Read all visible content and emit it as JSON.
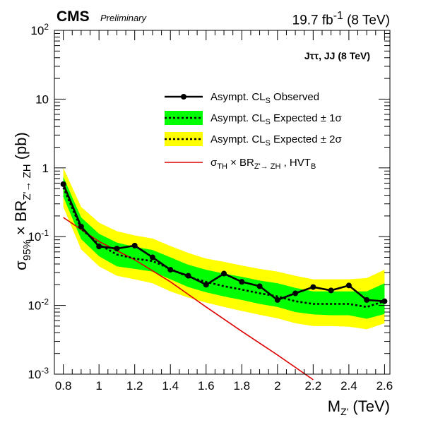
{
  "header": {
    "experiment": "CMS",
    "status": "Preliminary",
    "luminosity_html": "19.7 fb<sup>-1</sup> (8 TeV)"
  },
  "chart_data": {
    "type": "line",
    "channel_label_html": "J&tau;&tau;, JJ (8 TeV)",
    "xlabel_html": "M<tspan dy='5' font-size='14'>Z'</tspan><tspan dy='-5'> (TeV)</tspan>",
    "ylabel_html": "&sigma;<tspan dy='6' font-size='15'>95%</tspan><tspan dy='-6'> &times; BR</tspan><tspan dy='6' font-size='15'>Z'&rarr; ZH</tspan><tspan dy='-6'> (pb)</tspan>",
    "xlim": [
      0.75,
      2.63
    ],
    "ylim": [
      0.001,
      100
    ],
    "yscale": "log",
    "x_ticks": [
      0.8,
      1,
      1.2,
      1.4,
      1.6,
      1.8,
      2,
      2.2,
      2.4,
      2.6
    ],
    "x_tick_labels": [
      "0.8",
      "1",
      "1.2",
      "1.4",
      "1.6",
      "1.8",
      "2",
      "2.2",
      "2.4",
      "2.6"
    ],
    "y_ticks": [
      0.001,
      0.01,
      0.1,
      1,
      10,
      100
    ],
    "y_tick_labels_html": [
      "10<tspan dy='-7' font-size='12'>-3</tspan>",
      "10<tspan dy='-7' font-size='12'>-2</tspan>",
      "10<tspan dy='-7' font-size='12'>-1</tspan>",
      "1",
      "10",
      "10<tspan dy='-7' font-size='12'>2</tspan>"
    ],
    "legend": {
      "position": "top-right",
      "entries_html": [
        "Asympt. CL<tspan dy='4' font-size='11'>S</tspan><tspan dy='-4'> Observed</tspan>",
        "Asympt. CL<tspan dy='4' font-size='11'>S</tspan><tspan dy='-4'> Expected &plusmn; 1&sigma;</tspan>",
        "Asympt. CL<tspan dy='4' font-size='11'>S</tspan><tspan dy='-4'> Expected &plusmn; 2&sigma;</tspan>",
        "&sigma;<tspan dy='4' font-size='11'>TH</tspan><tspan dy='-4'> &times; BR</tspan><tspan dy='4' font-size='11'>Z'&rarr; ZH</tspan><tspan dy='-4'> , HVT</tspan><tspan dy='4' font-size='11'>B</tspan>"
      ]
    },
    "colors": {
      "band_2sigma": "#ffff00",
      "band_1sigma": "#00ff00",
      "expected": "#000000",
      "observed": "#000000",
      "theory": "#dd0000"
    },
    "mass_points": [
      0.8,
      0.9,
      1.0,
      1.1,
      1.2,
      1.3,
      1.4,
      1.5,
      1.6,
      1.7,
      1.8,
      1.9,
      2.0,
      2.1,
      2.2,
      2.3,
      2.4,
      2.5,
      2.6
    ],
    "observed": [
      0.58,
      0.14,
      0.072,
      0.067,
      0.074,
      0.05,
      0.033,
      0.027,
      0.02,
      0.029,
      0.022,
      0.019,
      0.012,
      0.015,
      0.0185,
      0.0165,
      0.0195,
      0.012,
      0.0115
    ],
    "expected": [
      0.52,
      0.13,
      0.077,
      0.055,
      0.048,
      0.044,
      0.034,
      0.026,
      0.022,
      0.019,
      0.017,
      0.015,
      0.0135,
      0.0115,
      0.0105,
      0.0105,
      0.0105,
      0.0095,
      0.0115
    ],
    "band_1sigma_low": [
      0.38,
      0.092,
      0.052,
      0.037,
      0.034,
      0.031,
      0.024,
      0.0185,
      0.0155,
      0.0135,
      0.012,
      0.0105,
      0.0095,
      0.008,
      0.0074,
      0.0072,
      0.0072,
      0.0064,
      0.0075
    ],
    "band_1sigma_high": [
      0.74,
      0.19,
      0.11,
      0.082,
      0.071,
      0.064,
      0.05,
      0.039,
      0.033,
      0.029,
      0.026,
      0.023,
      0.021,
      0.018,
      0.016,
      0.016,
      0.016,
      0.016,
      0.021
    ],
    "band_2sigma_low": [
      0.27,
      0.065,
      0.037,
      0.027,
      0.024,
      0.021,
      0.016,
      0.013,
      0.011,
      0.0095,
      0.0083,
      0.0073,
      0.0065,
      0.0055,
      0.005,
      0.005,
      0.0049,
      0.0045,
      0.0055
    ],
    "band_2sigma_high": [
      1.0,
      0.27,
      0.16,
      0.12,
      0.104,
      0.094,
      0.073,
      0.058,
      0.048,
      0.043,
      0.038,
      0.034,
      0.031,
      0.027,
      0.024,
      0.024,
      0.024,
      0.025,
      0.033
    ],
    "theory": {
      "x": [
        0.8,
        1.0,
        1.2,
        1.4,
        1.6,
        1.8,
        2.0,
        2.2
      ],
      "y": [
        0.19,
        0.085,
        0.046,
        0.022,
        0.0095,
        0.0042,
        0.0019,
        0.00083
      ]
    }
  }
}
